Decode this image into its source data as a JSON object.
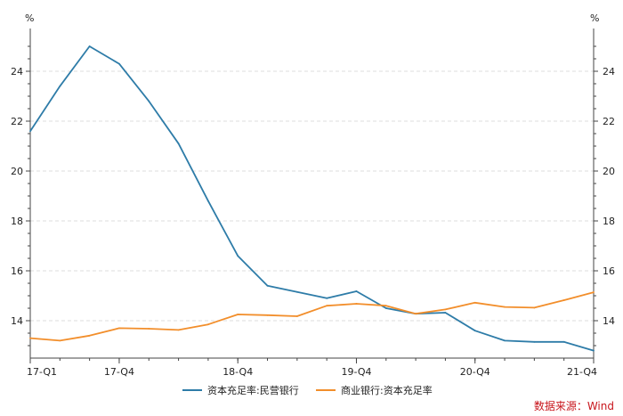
{
  "chart_data": {
    "type": "line",
    "y_unit_left": "%",
    "y_unit_right": "%",
    "ylim": [
      12.5,
      25.5
    ],
    "y_ticks": [
      14,
      16,
      18,
      20,
      22,
      24
    ],
    "x_tick_labels": [
      "17-Q1",
      "17-Q4",
      "18-Q4",
      "19-Q4",
      "20-Q4",
      "21-Q4"
    ],
    "x_tick_index": [
      0,
      3,
      7,
      11,
      15,
      19
    ],
    "n_points": 20,
    "grid": true,
    "legend_position": "bottom-center",
    "series": [
      {
        "name": "资本充足率:民营银行",
        "color": "#2e7ca8",
        "values": [
          21.6,
          23.4,
          25.0,
          24.3,
          22.8,
          21.1,
          18.8,
          16.6,
          15.4,
          15.15,
          14.9,
          15.18,
          14.5,
          14.28,
          14.32,
          13.6,
          13.2,
          13.15,
          13.15,
          12.8
        ]
      },
      {
        "name": "商业银行:资本充足率",
        "color": "#f28e2b",
        "values": [
          13.3,
          13.2,
          13.4,
          13.7,
          13.68,
          13.63,
          13.85,
          14.25,
          14.22,
          14.18,
          14.6,
          14.68,
          14.6,
          14.28,
          14.45,
          14.72,
          14.55,
          14.52,
          14.82,
          15.14
        ]
      }
    ]
  },
  "source_text": "数据来源：Wind"
}
